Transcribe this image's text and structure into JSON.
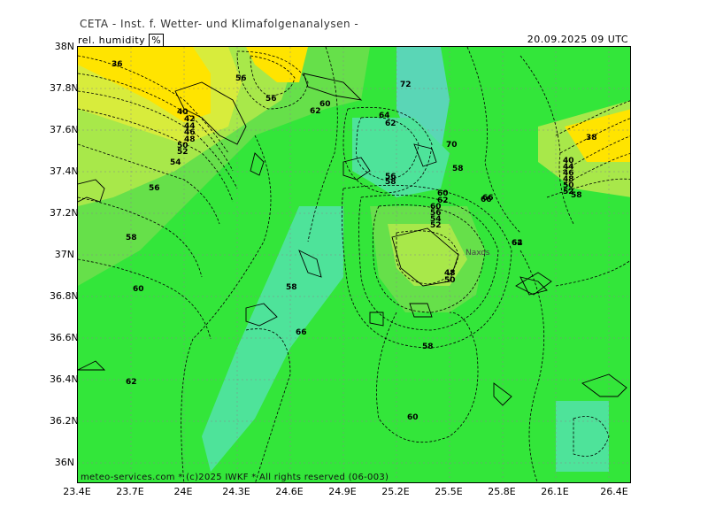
{
  "header": {
    "title": "CETA - Inst. f. Wetter- und Klimafolgenanalysen -",
    "variable": "rel. humidity",
    "unit": "%",
    "datetime": "20.09.2025 09 UTC"
  },
  "map": {
    "lat_labels": [
      "38N",
      "37.8N",
      "37.6N",
      "37.4N",
      "37.2N",
      "37N",
      "36.8N",
      "36.6N",
      "36.4N",
      "36.2N",
      "36N"
    ],
    "lon_labels": [
      "23.4E",
      "23.7E",
      "24E",
      "24.3E",
      "24.6E",
      "24.9E",
      "25.2E",
      "25.5E",
      "25.8E",
      "26.1E",
      "26.4E"
    ],
    "contour_labels": [
      "36",
      "56",
      "56",
      "60",
      "62",
      "72",
      "40",
      "42",
      "44",
      "46",
      "48",
      "50",
      "52",
      "54",
      "56",
      "58",
      "60",
      "62",
      "64",
      "62",
      "70",
      "58",
      "56",
      "58",
      "60",
      "62",
      "60",
      "56",
      "54",
      "52",
      "58",
      "66",
      "64",
      "38",
      "40",
      "44",
      "46",
      "48",
      "50",
      "52",
      "58",
      "48",
      "50",
      "66",
      "58",
      "60",
      "66",
      "62"
    ],
    "place_label": "Naxos",
    "colors": {
      "humidity_high": "#00d040",
      "humidity_mid": "#33e63a",
      "humidity_very_high": "#4ee39a",
      "humidity_teal": "#5ad6b6",
      "humidity_low": "#66e04a",
      "humidity_lower": "#a8e84a",
      "humidity_dry": "#ffe400",
      "contour": "#000000",
      "coastline": "#000000"
    }
  },
  "footer": {
    "credit": "meteo-services.com * (c)2025 IWKF * All rights reserved (06-003)"
  }
}
